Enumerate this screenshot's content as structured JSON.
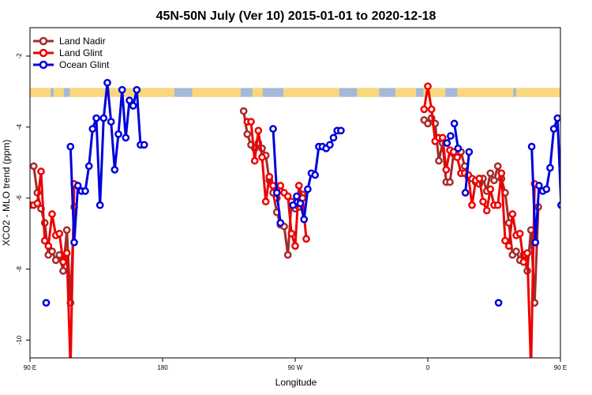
{
  "chart_data": {
    "type": "line",
    "title": "45N-50N July (Ver 10)   2015-01-01 to 2020-12-18",
    "xlabel": "Longitude",
    "ylabel": "XCO2 - MLO trend (ppm)",
    "xlim": [
      90,
      450
    ],
    "ylim": [
      -10.5,
      -1.2
    ],
    "x_ticks": [
      {
        "value": 90,
        "label": "90 E"
      },
      {
        "value": 180,
        "label": "180"
      },
      {
        "value": 270,
        "label": "90 W"
      },
      {
        "value": 360,
        "label": "0"
      },
      {
        "value": 450,
        "label": "90 E"
      },
      {
        "value": 540,
        "label": "180"
      }
    ],
    "y_ticks": [
      {
        "value": -2,
        "label": "-2"
      },
      {
        "value": -4,
        "label": "-4"
      },
      {
        "value": -6,
        "label": "-6"
      },
      {
        "value": -8,
        "label": "-8"
      },
      {
        "value": -10,
        "label": "-10"
      }
    ],
    "grid": false,
    "legend_position": "top-left",
    "map_strip": {
      "y_range": [
        -3.15,
        -2.9
      ],
      "ocean_color": "#a4b8d8",
      "land_color": "#f9d77c"
    },
    "series": [
      {
        "name": "Land Nadir",
        "color": "#a52a2a",
        "segments": [
          [
            [
              92.5,
              -5.1
            ],
            [
              95,
              -5.85
            ],
            [
              97.5,
              -6.3
            ],
            [
              100,
              -6.7
            ],
            [
              102.5,
              -7.6
            ],
            [
              105,
              -7.5
            ],
            [
              107.5,
              -7.75
            ],
            [
              110,
              -7.6
            ],
            [
              112.5,
              -8.05
            ],
            [
              115,
              -6.9
            ],
            [
              117.5,
              -8.95
            ],
            [
              120,
              -6.25
            ]
          ],
          [
            [
              235,
              -3.55
            ],
            [
              237.5,
              -4.2
            ],
            [
              240,
              -4.5
            ],
            [
              242.5,
              -4.6
            ],
            [
              245,
              -4.45
            ],
            [
              247.5,
              -4.6
            ],
            [
              250,
              -4.8
            ],
            [
              252.5,
              -5.5
            ],
            [
              255,
              -5.85
            ],
            [
              257.5,
              -6.4
            ],
            [
              260,
              -6.75
            ],
            [
              262.5,
              -6.8
            ],
            [
              265,
              -7.6
            ],
            [
              267.5,
              -6.1
            ],
            [
              270,
              -6.3
            ],
            [
              272.5,
              -6.25
            ],
            [
              275,
              -5.9
            ]
          ],
          [
            [
              357.5,
              -3.8
            ],
            [
              360,
              -3.9
            ],
            [
              362.5,
              -3.75
            ],
            [
              365,
              -3.9
            ],
            [
              367.5,
              -4.95
            ],
            [
              370,
              -4.45
            ],
            [
              372.5,
              -5.55
            ],
            [
              375,
              -5.55
            ],
            [
              377.5,
              -4.75
            ],
            [
              380,
              -4.7
            ],
            [
              382.5,
              -4.7
            ],
            [
              385,
              -5.1
            ],
            [
              387.5,
              -5.4
            ],
            [
              390,
              -5.45
            ],
            [
              392.5,
              -5.55
            ],
            [
              395,
              -5.6
            ],
            [
              397.5,
              -5.45
            ],
            [
              400,
              -5.8
            ],
            [
              402.5,
              -5.3
            ],
            [
              405,
              -5.5
            ],
            [
              407.5,
              -5.1
            ],
            [
              410,
              -5.45
            ],
            [
              412.5,
              -5.85
            ],
            [
              415,
              -6.7
            ],
            [
              417.5,
              -7.6
            ],
            [
              420,
              -7.5
            ],
            [
              422.5,
              -7.75
            ],
            [
              425,
              -7.6
            ],
            [
              427.5,
              -8.05
            ],
            [
              430,
              -6.9
            ],
            [
              432.5,
              -8.95
            ],
            [
              435,
              -6.25
            ]
          ]
        ]
      },
      {
        "name": "Land Glint",
        "color": "#ee0000",
        "segments": [
          [
            [
              90,
              -6.2
            ],
            [
              92.5,
              -6.2
            ],
            [
              95,
              -6.15
            ],
            [
              97.5,
              -5.25
            ],
            [
              100,
              -7.2
            ],
            [
              102.5,
              -7.35
            ],
            [
              105,
              -6.45
            ],
            [
              107.5,
              -7.05
            ],
            [
              110,
              -7.0
            ],
            [
              112.5,
              -7.8
            ],
            [
              115,
              -7.55
            ],
            [
              117.5,
              -10.8
            ],
            [
              120,
              -5.6
            ]
          ],
          [
            [
              237.5,
              -3.85
            ],
            [
              240,
              -3.85
            ],
            [
              242.5,
              -4.95
            ],
            [
              245,
              -4.1
            ],
            [
              247.5,
              -4.85
            ],
            [
              250,
              -6.1
            ],
            [
              252.5,
              -5.4
            ],
            [
              255,
              -5.65
            ],
            [
              257.5,
              -6.0
            ],
            [
              260,
              -5.65
            ],
            [
              262.5,
              -5.85
            ],
            [
              265,
              -5.95
            ],
            [
              267.5,
              -7.0
            ],
            [
              270,
              -7.35
            ],
            [
              272.5,
              -5.65
            ],
            [
              275,
              -6.0
            ],
            [
              277.5,
              -7.15
            ]
          ],
          [
            [
              357.5,
              -3.5
            ],
            [
              360,
              -2.85
            ],
            [
              362.5,
              -3.5
            ],
            [
              365,
              -4.4
            ],
            [
              367.5,
              -4.3
            ],
            [
              370,
              -4.3
            ],
            [
              372.5,
              -5.2
            ],
            [
              375,
              -4.65
            ],
            [
              377.5,
              -4.7
            ],
            [
              380,
              -4.85
            ],
            [
              382.5,
              -5.3
            ],
            [
              385,
              -5.3
            ],
            [
              387.5,
              -5.35
            ],
            [
              390,
              -6.2
            ],
            [
              392.5,
              -5.5
            ],
            [
              395,
              -5.45
            ],
            [
              397.5,
              -6.1
            ],
            [
              400,
              -6.35
            ],
            [
              402.5,
              -5.75
            ],
            [
              405,
              -6.2
            ],
            [
              407.5,
              -6.2
            ],
            [
              410,
              -5.3
            ],
            [
              412.5,
              -7.2
            ],
            [
              415,
              -7.35
            ],
            [
              417.5,
              -6.45
            ],
            [
              420,
              -7.05
            ],
            [
              422.5,
              -7.0
            ],
            [
              425,
              -7.8
            ],
            [
              427.5,
              -7.55
            ],
            [
              430,
              -10.8
            ],
            [
              432.5,
              -5.6
            ]
          ]
        ]
      },
      {
        "name": "Ocean Glint",
        "color": "#0000dd",
        "segments": [
          [
            [
              101,
              -8.95
            ]
          ],
          [
            [
              117.5,
              -4.55
            ],
            [
              120,
              -7.25
            ],
            [
              122.5,
              -5.65
            ],
            [
              125,
              -5.8
            ],
            [
              127.5,
              -5.8
            ],
            [
              130,
              -5.1
            ],
            [
              132.5,
              -4.05
            ],
            [
              135,
              -3.75
            ],
            [
              137.5,
              -6.2
            ],
            [
              140,
              -3.75
            ],
            [
              142.5,
              -2.75
            ],
            [
              145,
              -3.85
            ],
            [
              147.5,
              -5.2
            ],
            [
              150,
              -4.2
            ],
            [
              152.5,
              -2.95
            ],
            [
              155,
              -4.3
            ],
            [
              157.5,
              -3.25
            ],
            [
              160,
              -3.4
            ],
            [
              162.5,
              -2.95
            ],
            [
              165,
              -4.5
            ],
            [
              167.5,
              -4.5
            ]
          ],
          [
            [
              255,
              -4.05
            ],
            [
              257.5,
              -5.85
            ],
            [
              260,
              -6.7
            ]
          ],
          [
            [
              268.5,
              -6.2
            ],
            [
              271,
              -5.95
            ],
            [
              273.5,
              -6.15
            ],
            [
              276,
              -6.6
            ],
            [
              278.5,
              -5.75
            ],
            [
              281,
              -5.3
            ],
            [
              283.5,
              -5.35
            ],
            [
              286,
              -4.55
            ],
            [
              288.5,
              -4.55
            ],
            [
              291,
              -4.6
            ],
            [
              293.5,
              -4.5
            ],
            [
              296,
              -4.3
            ],
            [
              298.5,
              -4.1
            ],
            [
              301,
              -4.1
            ]
          ],
          [
            [
              373,
              -4.45
            ],
            [
              375.5,
              -4.25
            ]
          ],
          [
            [
              378,
              -3.9
            ],
            [
              380.5,
              -4.6
            ]
          ],
          [
            [
              385.5,
              -5.85
            ],
            [
              388,
              -4.7
            ]
          ],
          [
            [
              408,
              -8.95
            ]
          ],
          [
            [
              430.5,
              -4.55
            ],
            [
              433,
              -7.25
            ],
            [
              435.5,
              -5.65
            ],
            [
              438,
              -5.8
            ],
            [
              440.5,
              -5.75
            ],
            [
              443,
              -5.15
            ],
            [
              445.5,
              -4.05
            ],
            [
              448,
              -3.75
            ],
            [
              450.5,
              -6.2
            ]
          ]
        ]
      }
    ]
  }
}
